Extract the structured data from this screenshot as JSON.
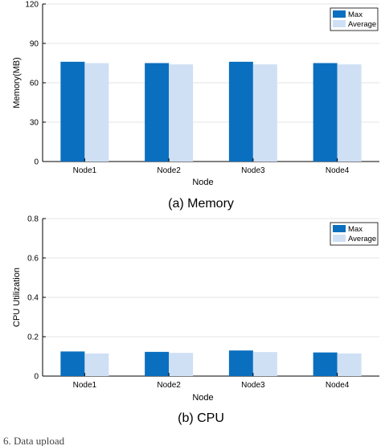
{
  "colors": {
    "max": "#0a6fbf",
    "average": "#cfe0f5",
    "grid": "#e6e6e6",
    "axis": "#000000"
  },
  "chart_data": [
    {
      "type": "bar",
      "caption": "(a) Memory",
      "categories": [
        "Node1",
        "Node2",
        "Node3",
        "Node4"
      ],
      "series": [
        {
          "name": "Max",
          "values": [
            76,
            75,
            76,
            75
          ]
        },
        {
          "name": "Average",
          "values": [
            75,
            74,
            74,
            74
          ]
        }
      ],
      "xlabel": "Node",
      "ylabel": "Memory(MB)",
      "ylim": [
        0,
        120
      ],
      "yticks": [
        "0",
        "30",
        "60",
        "90",
        "120"
      ],
      "grid": true,
      "legend": "top-right"
    },
    {
      "type": "bar",
      "caption": "(b) CPU",
      "categories": [
        "Node1",
        "Node2",
        "Node3",
        "Node4"
      ],
      "series": [
        {
          "name": "Max",
          "values": [
            0.125,
            0.123,
            0.13,
            0.12
          ]
        },
        {
          "name": "Average",
          "values": [
            0.115,
            0.118,
            0.122,
            0.115
          ]
        }
      ],
      "xlabel": "Node",
      "ylabel": "CPU Utilization",
      "ylim": [
        0,
        0.8
      ],
      "yticks": [
        "0",
        "0.2",
        "0.4",
        "0.6",
        "0.8"
      ],
      "grid": true,
      "legend": "top-right"
    }
  ],
  "footer": {
    "text": "6.    Data upload"
  }
}
